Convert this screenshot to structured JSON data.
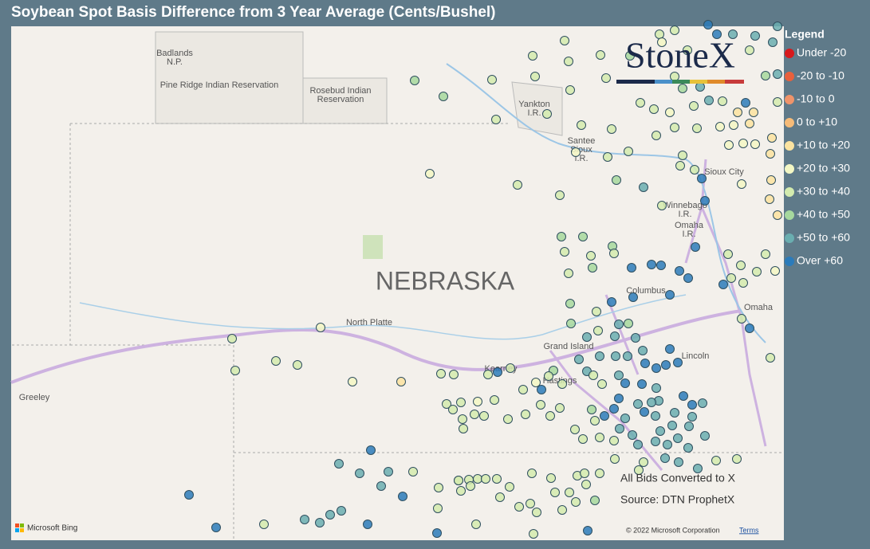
{
  "header": {
    "title": "Soybean Spot Basis Difference from 3 Year Average (Cents/Bushel)"
  },
  "legend": {
    "title": "Legend",
    "items": [
      {
        "label": "Under -20",
        "color": "#d7191c"
      },
      {
        "label": "-20 to -10",
        "color": "#e8603c"
      },
      {
        "label": "-10 to 0",
        "color": "#f0946a"
      },
      {
        "label": "0 to +10",
        "color": "#f6bb78"
      },
      {
        "label": "+10 to +20",
        "color": "#fbe3a0"
      },
      {
        "label": "+20 to +30",
        "color": "#f3f7c4"
      },
      {
        "label": "+30 to +40",
        "color": "#d3ebae"
      },
      {
        "label": "+40 to +50",
        "color": "#a6d89e"
      },
      {
        "label": "+50 to +60",
        "color": "#6aaeb0"
      },
      {
        "label": "Over +60",
        "color": "#2b7bba"
      }
    ]
  },
  "logo": "StoneX",
  "map": {
    "state": "NEBRASKA",
    "places": [
      [
        "Badlands",
        "N.P."
      ],
      [
        "Pine Ridge Indian Reservation"
      ],
      [
        "Rosebud Indian",
        "Reservation"
      ],
      [
        "Yankton",
        "I.R."
      ],
      [
        "Santee",
        "Sioux",
        "I.R."
      ],
      [
        "Sioux City"
      ],
      [
        "Winnebago",
        "I.R."
      ],
      [
        "Omaha",
        "I.R."
      ],
      [
        "Columbus"
      ],
      [
        "Omaha"
      ],
      [
        "North Platte"
      ],
      [
        "Grand Island"
      ],
      [
        "Lincoln"
      ],
      [
        "Kearney"
      ],
      [
        "Hastings"
      ],
      [
        "Greeley"
      ]
    ]
  },
  "notes": [
    "All Bids Converted to X",
    "Source: DTN ProphetX"
  ],
  "footer": {
    "provider": "Microsoft Bing",
    "attribution": "© 2022 Microsoft Corporation",
    "terms": "Terms"
  }
}
